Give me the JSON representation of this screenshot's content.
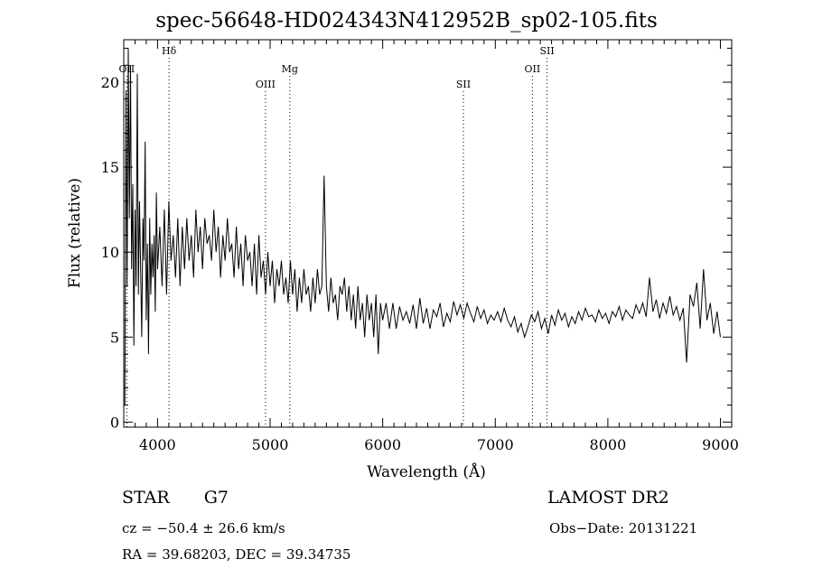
{
  "header": {
    "title": "spec-56648-HD024343N412952B_sp02-105.fits"
  },
  "info": {
    "class": "STAR",
    "subclass": "G7",
    "survey": "LAMOST DR2",
    "cz": "cz = −50.4 ± 26.6 km/s",
    "obs_date": "Obs−Date: 20131221",
    "radec": "RA =  39.68203, DEC =  39.34735"
  },
  "chart_data": {
    "type": "line",
    "title": "spec-56648-HD024343N412952B_sp02-105.fits",
    "xlabel": "Wavelength (Å)",
    "ylabel": "Flux (relative)",
    "xlim": [
      3700,
      9100
    ],
    "ylim": [
      -0.3,
      22.5
    ],
    "xticks": [
      4000,
      5000,
      6000,
      7000,
      8000,
      9000
    ],
    "yticks": [
      0,
      5,
      10,
      15,
      20
    ],
    "grid": false,
    "line_color": "#000000",
    "lines": [
      {
        "label": "OII",
        "x": 3727,
        "row": 1
      },
      {
        "label": "Hδ",
        "x": 4102,
        "row": 0
      },
      {
        "label": "OIII",
        "x": 4959,
        "row": 2
      },
      {
        "label": "Mg",
        "x": 5175,
        "row": 1
      },
      {
        "label": "SII",
        "x": 6717,
        "row": 2
      },
      {
        "label": "OII",
        "x": 7330,
        "row": 1
      },
      {
        "label": "SII",
        "x": 7460,
        "row": 0
      }
    ],
    "series": [
      {
        "x": [
          3710,
          3720,
          3730,
          3740,
          3750,
          3760,
          3770,
          3780,
          3790,
          3800,
          3810,
          3820,
          3830,
          3840,
          3850,
          3860,
          3870,
          3880,
          3890,
          3900,
          3910,
          3920,
          3930,
          3940,
          3950,
          3960,
          3970,
          3980,
          3990,
          4000,
          4020,
          4040,
          4060,
          4080,
          4100,
          4120,
          4140,
          4160,
          4180,
          4200,
          4220,
          4240,
          4260,
          4280,
          4300,
          4320,
          4340,
          4360,
          4380,
          4400,
          4420,
          4440,
          4460,
          4480,
          4500,
          4520,
          4540,
          4560,
          4580,
          4600,
          4620,
          4640,
          4660,
          4680,
          4700,
          4720,
          4740,
          4760,
          4780,
          4800,
          4820,
          4840,
          4860,
          4880,
          4900,
          4920,
          4940,
          4960,
          4980,
          5000,
          5020,
          5040,
          5060,
          5080,
          5100,
          5120,
          5140,
          5160,
          5180,
          5200,
          5220,
          5240,
          5260,
          5280,
          5300,
          5320,
          5340,
          5360,
          5380,
          5400,
          5420,
          5440,
          5460,
          5480,
          5500,
          5520,
          5540,
          5560,
          5580,
          5600,
          5620,
          5640,
          5660,
          5680,
          5700,
          5720,
          5740,
          5760,
          5780,
          5800,
          5820,
          5840,
          5860,
          5880,
          5900,
          5920,
          5940,
          5960,
          5980,
          6000,
          6030,
          6060,
          6090,
          6120,
          6150,
          6180,
          6210,
          6240,
          6270,
          6300,
          6330,
          6360,
          6390,
          6420,
          6450,
          6480,
          6510,
          6540,
          6570,
          6600,
          6630,
          6660,
          6690,
          6720,
          6750,
          6780,
          6810,
          6840,
          6870,
          6900,
          6930,
          6960,
          6990,
          7020,
          7050,
          7080,
          7110,
          7140,
          7170,
          7200,
          7230,
          7260,
          7290,
          7320,
          7350,
          7380,
          7410,
          7440,
          7470,
          7500,
          7530,
          7560,
          7590,
          7620,
          7650,
          7680,
          7710,
          7740,
          7770,
          7800,
          7830,
          7860,
          7890,
          7920,
          7950,
          7980,
          8010,
          8040,
          8070,
          8100,
          8130,
          8160,
          8190,
          8220,
          8250,
          8280,
          8310,
          8340,
          8370,
          8400,
          8430,
          8460,
          8490,
          8520,
          8550,
          8580,
          8610,
          8640,
          8670,
          8700,
          8730,
          8760,
          8790,
          8820,
          8850,
          8880,
          8910,
          8940,
          8970,
          9000
        ],
        "values": [
          1.0,
          19.5,
          8.0,
          22.0,
          12.0,
          21.0,
          9.0,
          14.0,
          4.5,
          12.5,
          8.0,
          20.5,
          7.5,
          13.0,
          9.0,
          5.0,
          12.0,
          9.5,
          16.5,
          6.0,
          10.5,
          4.0,
          12.0,
          7.5,
          10.5,
          8.5,
          11.0,
          6.5,
          13.5,
          9.0,
          11.5,
          8.0,
          12.5,
          7.5,
          13.0,
          9.5,
          11.0,
          8.5,
          12.0,
          8.0,
          11.5,
          9.0,
          12.0,
          9.5,
          11.0,
          8.5,
          12.5,
          10.0,
          11.5,
          9.0,
          12.0,
          10.5,
          11.0,
          9.5,
          12.5,
          10.0,
          11.5,
          8.5,
          11.0,
          9.5,
          12.0,
          10.0,
          10.5,
          8.5,
          11.5,
          9.0,
          10.5,
          8.0,
          11.0,
          9.5,
          10.0,
          8.0,
          10.5,
          7.5,
          11.0,
          8.5,
          9.5,
          7.5,
          10.0,
          8.0,
          9.5,
          7.0,
          9.0,
          8.0,
          9.5,
          7.5,
          8.5,
          7.0,
          9.5,
          7.5,
          9.0,
          6.5,
          8.5,
          7.0,
          9.0,
          7.5,
          8.0,
          6.5,
          8.5,
          7.0,
          9.0,
          7.5,
          8.0,
          14.5,
          8.0,
          6.5,
          8.5,
          7.0,
          7.5,
          6.0,
          8.0,
          7.5,
          8.5,
          6.5,
          8.0,
          6.0,
          7.5,
          5.5,
          8.0,
          6.0,
          7.0,
          5.0,
          7.5,
          6.0,
          7.0,
          5.0,
          7.5,
          4.0,
          7.0,
          6.0,
          7.0,
          5.5,
          7.0,
          5.5,
          6.8,
          6.0,
          6.5,
          5.8,
          6.9,
          5.5,
          7.3,
          5.8,
          6.7,
          5.5,
          6.6,
          6.2,
          7.0,
          5.6,
          6.4,
          5.9,
          7.1,
          6.3,
          6.9,
          6.1,
          7.0,
          6.4,
          5.9,
          6.8,
          6.1,
          6.6,
          5.8,
          6.3,
          6.0,
          6.5,
          5.9,
          6.7,
          6.0,
          5.6,
          6.2,
          5.3,
          5.8,
          5.0,
          5.6,
          6.3,
          5.9,
          6.5,
          5.5,
          6.1,
          5.2,
          6.3,
          5.7,
          6.6,
          6.0,
          6.4,
          5.6,
          6.2,
          5.8,
          6.5,
          6.0,
          6.7,
          6.2,
          6.3,
          5.9,
          6.6,
          6.1,
          6.4,
          5.8,
          6.5,
          6.2,
          6.8,
          6.0,
          6.6,
          6.3,
          6.1,
          6.9,
          6.4,
          7.0,
          6.2,
          8.5,
          6.5,
          7.2,
          6.1,
          7.0,
          6.4,
          7.4,
          6.3,
          6.8,
          6.0,
          6.7,
          3.5,
          7.5,
          6.8,
          8.2,
          5.5,
          9.0,
          6.0,
          7.0,
          5.2,
          6.5,
          5.0
        ]
      }
    ]
  }
}
